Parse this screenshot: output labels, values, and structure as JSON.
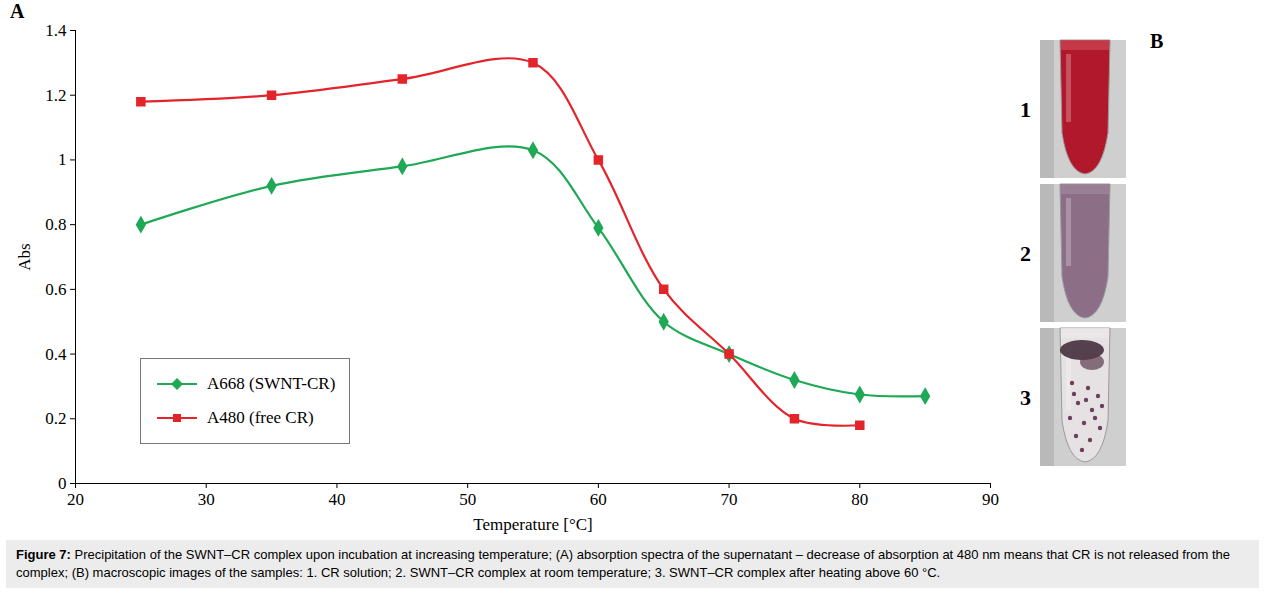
{
  "chart_data": {
    "type": "line",
    "panel_label": "A",
    "x_label": "Temperature [°C]",
    "y_label": "Abs",
    "x": [
      25,
      35,
      45,
      55,
      60,
      65,
      70,
      75,
      80,
      85
    ],
    "series": [
      {
        "name": "A668 (SWNT-CR)",
        "color": "#1fa855",
        "marker": "diamond",
        "line_style": "smooth",
        "values": [
          0.8,
          0.92,
          0.98,
          1.03,
          0.79,
          0.5,
          0.4,
          0.32,
          0.275,
          0.27
        ]
      },
      {
        "name": "A480 (free CR)",
        "color": "#e3242b",
        "marker": "square",
        "line_style": "smooth",
        "values": [
          1.18,
          1.2,
          1.25,
          1.3,
          1.0,
          0.6,
          0.4,
          0.2,
          0.18,
          null
        ]
      }
    ],
    "xlim": [
      20,
      90
    ],
    "xticks": [
      20,
      30,
      40,
      50,
      60,
      70,
      80,
      90
    ],
    "ylim": [
      0,
      1.4
    ],
    "yticks": [
      0,
      0.2,
      0.4,
      0.6,
      0.8,
      1,
      1.2,
      1.4
    ],
    "grid": false,
    "legend": "lower left"
  },
  "panel_b": {
    "panel_label": "B",
    "images": [
      {
        "label": "1"
      },
      {
        "label": "2"
      },
      {
        "label": "3"
      }
    ]
  },
  "caption": {
    "label": "Figure 7:",
    "text": "Precipitation of the SWNT–CR complex upon incubation at increasing temperature; (A) absorption spectra of the supernatant – decrease of absorption at 480 nm means that CR is not released from the complex; (B) macroscopic images of the samples: 1. CR solution; 2. SWNT–CR complex at room temperature; 3. SWNT–CR complex after heating above 60 °C."
  }
}
